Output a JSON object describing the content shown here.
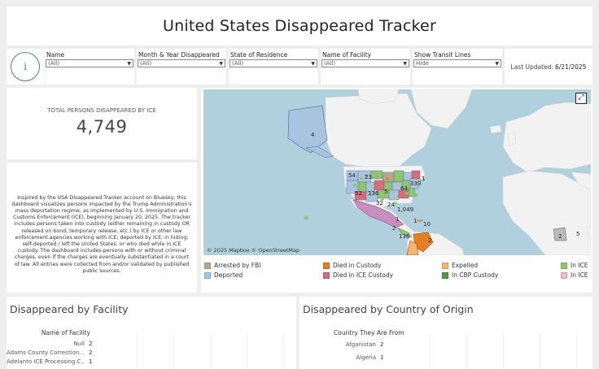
{
  "title": "United States Disappeared Tracker",
  "filters": [
    {
      "label": "Name",
      "value": "(All)"
    },
    {
      "label": "Month & Year Disappeared",
      "value": "(All)"
    },
    {
      "label": "State of Residence",
      "value": "(All)"
    },
    {
      "label": "Name of Facility",
      "value": "(All)"
    },
    {
      "label": "Show Transit Lines",
      "value": "Hide"
    }
  ],
  "info_icon_text": "i",
  "last_updated": {
    "label": "Last Updated:",
    "value": "6/21/2025"
  },
  "total": {
    "label": "TOTAL PERSONS DISAPPEARED BY ICE",
    "value": "4,749"
  },
  "about": "Inspired by the USA Disappeared Tracker account on Bluesky, this dashboard visualizes persons impacted by the Trump Administration's mass deportation regime, as implemented by U.S. Immigration and Customs Enforcement (ICE), beginning January 20, 2025. The tracker includes persons taken into custody (either remaining in custody OR released on bond, temporary release, etc.) by ICE or other law enforcement agencies working with ICE; deported by ICE; in hiding; self-deported / left the United States; or who died while in ICE custody. The dashboard includes persons with or without criminal charges, even if the charges are eventually substantiated in a court of law. All entries were collected from and/or validated by published public sources.",
  "map": {
    "copyright": "© 2025 Mapbox  © OpenStreetMap",
    "expand_icon": "expand-icon",
    "labels": [
      {
        "text": "4"
      },
      {
        "text": "54"
      },
      {
        "text": "23"
      },
      {
        "text": "52"
      },
      {
        "text": "136"
      },
      {
        "text": "5"
      },
      {
        "text": "64"
      },
      {
        "text": "339"
      },
      {
        "text": "1"
      },
      {
        "text": "32"
      },
      {
        "text": "24"
      },
      {
        "text": "1,049"
      },
      {
        "text": "1"
      },
      {
        "text": "1"
      },
      {
        "text": "10"
      },
      {
        "text": "2"
      },
      {
        "text": "136"
      },
      {
        "text": "2"
      },
      {
        "text": "2"
      },
      {
        "text": "5"
      }
    ]
  },
  "legend": [
    {
      "label": "Arrested by FBI",
      "color": "#b5a88e"
    },
    {
      "label": "Died in Custody",
      "color": "#e67e22"
    },
    {
      "label": "Expelled",
      "color": "#f5b66b"
    },
    {
      "label": "In ICE",
      "color": "#8fc56e"
    },
    {
      "label": "Deported",
      "color": "#a9c4de"
    },
    {
      "label": "Died in ICE Custody",
      "color": "#d96b7a"
    },
    {
      "label": "In CBP Custody",
      "color": "#4f9a3e"
    },
    {
      "label": "In ICE",
      "color": "#f4bdbf"
    }
  ],
  "facility": {
    "title": "Disappeared by  Facility",
    "column_header": "Name of Facility",
    "rows": [
      {
        "name": "Null",
        "value": "2"
      },
      {
        "name": "Adams County Correction...",
        "value": "2"
      },
      {
        "name": "Adelanto ICE Processing C...",
        "value": "1"
      }
    ]
  },
  "country": {
    "title": "Disappeared by Country of Origin",
    "column_header": "Country They Are From",
    "rows": [
      {
        "name": "Afganistan",
        "value": "2"
      },
      {
        "name": "Algeria",
        "value": "1"
      }
    ]
  }
}
